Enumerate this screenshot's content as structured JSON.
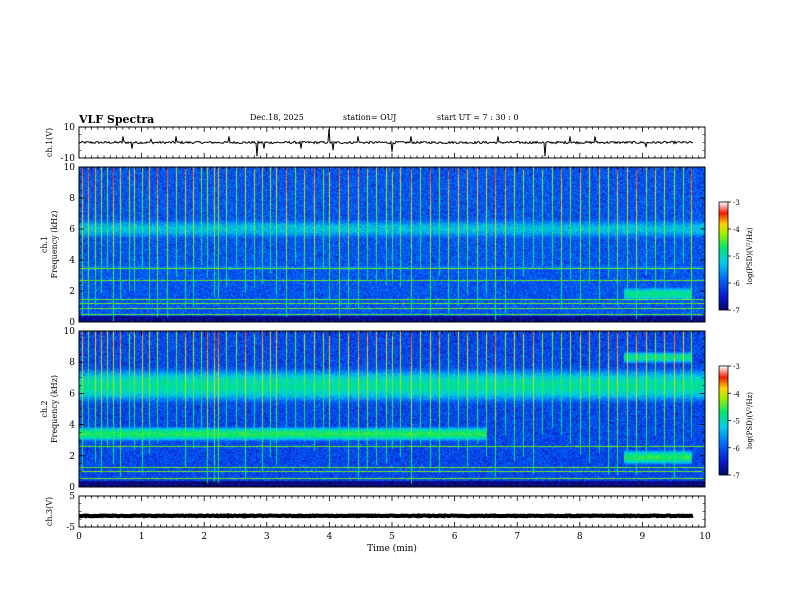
{
  "header": {
    "title": "VLF Spectra",
    "date": "Dec.18, 2025",
    "station": "station= OUJ",
    "start": "start  UT =   7 : 30 : 0"
  },
  "chart_data": [
    {
      "type": "line",
      "name": "ch.1 waveform",
      "ylabel": "ch.1(V)",
      "ylim": [
        -10,
        10
      ],
      "yticks": [
        10,
        -10
      ],
      "xlim": [
        0,
        10
      ],
      "baseline": 0,
      "noise_amplitude": 1.5,
      "spikes": [
        {
          "t": 0.7,
          "v": 4
        },
        {
          "t": 0.85,
          "v": -4
        },
        {
          "t": 1.15,
          "v": 2
        },
        {
          "t": 1.55,
          "v": 4
        },
        {
          "t": 2.4,
          "v": 4
        },
        {
          "t": 2.85,
          "v": -9
        },
        {
          "t": 2.95,
          "v": -4
        },
        {
          "t": 3.55,
          "v": -4
        },
        {
          "t": 4.0,
          "v": 9
        },
        {
          "t": 4.05,
          "v": -5
        },
        {
          "t": 4.45,
          "v": 4
        },
        {
          "t": 5.0,
          "v": -6
        },
        {
          "t": 5.3,
          "v": 4
        },
        {
          "t": 6.7,
          "v": 4
        },
        {
          "t": 7.45,
          "v": -9
        },
        {
          "t": 7.85,
          "v": 4
        },
        {
          "t": 8.25,
          "v": 4
        },
        {
          "t": 9.05,
          "v": -3
        }
      ]
    },
    {
      "type": "heatmap",
      "name": "ch.1 spectrogram",
      "ylabel": "ch.1\nFrequency (kHz)",
      "ylim": [
        0,
        10
      ],
      "yticks": [
        0,
        2,
        4,
        6,
        8,
        10
      ],
      "xlim": [
        0,
        10
      ],
      "colorbar": {
        "label": "log(PSD)(V²/Hz)",
        "range": [
          -7,
          -3
        ],
        "ticks": [
          -3,
          -4,
          -5,
          -6,
          -7
        ]
      },
      "background_level": -6.0,
      "bands": [
        {
          "f": 6.0,
          "level": -5.3,
          "width": 0.6
        },
        {
          "f": 3.5,
          "level": -5.7,
          "width": 0.15
        },
        {
          "f": 1.8,
          "t0": 8.7,
          "t1": 9.8,
          "level": -4.8,
          "width": 0.35
        }
      ],
      "lines_kHz": [
        0.5,
        0.9,
        1.2,
        1.5,
        2.7,
        3.5
      ],
      "sferics_min": [
        0.05,
        0.15,
        0.25,
        0.35,
        0.45,
        0.55,
        0.66,
        0.8,
        0.88,
        1.0,
        1.12,
        1.25,
        1.4,
        1.55,
        1.7,
        1.82,
        1.95,
        2.05,
        2.15,
        2.22,
        2.35,
        2.5,
        2.65,
        2.8,
        2.92,
        3.05,
        3.15,
        3.3,
        3.45,
        3.6,
        3.75,
        3.9,
        4.0,
        4.15,
        4.3,
        4.45,
        4.6,
        4.75,
        4.9,
        5.0,
        5.12,
        5.3,
        5.45,
        5.6,
        5.75,
        5.9,
        6.05,
        6.2,
        6.35,
        6.5,
        6.65,
        6.8,
        6.95,
        7.1,
        7.25,
        7.4,
        7.55,
        7.7,
        7.85,
        8.0,
        8.15,
        8.3,
        8.45,
        8.6,
        8.75,
        8.9,
        9.05,
        9.2,
        9.35,
        9.5,
        9.65,
        9.78
      ]
    },
    {
      "type": "heatmap",
      "name": "ch.2 spectrogram",
      "ylabel": "ch.2\nFrequency (kHz)",
      "ylim": [
        0,
        10
      ],
      "yticks": [
        0,
        2,
        4,
        6,
        8,
        10
      ],
      "xlim": [
        0,
        10
      ],
      "colorbar": {
        "label": "log(PSD)(V²/Hz)",
        "range": [
          -7,
          -3
        ],
        "ticks": [
          -3,
          -4,
          -5,
          -6,
          -7
        ]
      },
      "background_level": -6.1,
      "bands": [
        {
          "f": 6.5,
          "level": -4.9,
          "width": 0.9
        },
        {
          "f": 3.4,
          "t0": 0,
          "t1": 6.5,
          "level": -4.6,
          "width": 0.35
        },
        {
          "f": 1.9,
          "t0": 8.7,
          "t1": 9.8,
          "level": -4.6,
          "width": 0.35
        },
        {
          "f": 8.3,
          "t0": 8.7,
          "t1": 9.8,
          "level": -4.8,
          "width": 0.3
        }
      ],
      "lines_kHz": [
        0.6,
        1.0,
        1.3,
        2.6
      ],
      "sferics_min": [
        0.05,
        0.15,
        0.25,
        0.35,
        0.45,
        0.55,
        0.66,
        0.8,
        0.88,
        1.0,
        1.12,
        1.25,
        1.4,
        1.55,
        1.7,
        1.82,
        1.95,
        2.05,
        2.15,
        2.22,
        2.35,
        2.5,
        2.65,
        2.8,
        2.92,
        3.05,
        3.15,
        3.3,
        3.45,
        3.6,
        3.75,
        3.9,
        4.0,
        4.15,
        4.3,
        4.45,
        4.6,
        4.75,
        4.9,
        5.0,
        5.12,
        5.3,
        5.45,
        5.6,
        5.75,
        5.9,
        6.05,
        6.2,
        6.35,
        6.5,
        6.65,
        6.8,
        6.95,
        7.1,
        7.25,
        7.4,
        7.55,
        7.7,
        7.85,
        8.0,
        8.15,
        8.3,
        8.45,
        8.6,
        8.75,
        8.9,
        9.05,
        9.2,
        9.35,
        9.5,
        9.65,
        9.78
      ]
    },
    {
      "type": "line",
      "name": "ch.3 waveform",
      "ylabel": "ch.3(V)",
      "ylim": [
        -5,
        5
      ],
      "yticks": [
        5,
        -5
      ],
      "xlim": [
        0,
        10
      ],
      "baseline": -1.4,
      "noise_amplitude": 0.25
    }
  ],
  "xaxis": {
    "label": "Time (min)",
    "ticks": [
      "0",
      "1",
      "2",
      "3",
      "4",
      "5",
      "6",
      "7",
      "8",
      "9",
      "10"
    ]
  }
}
